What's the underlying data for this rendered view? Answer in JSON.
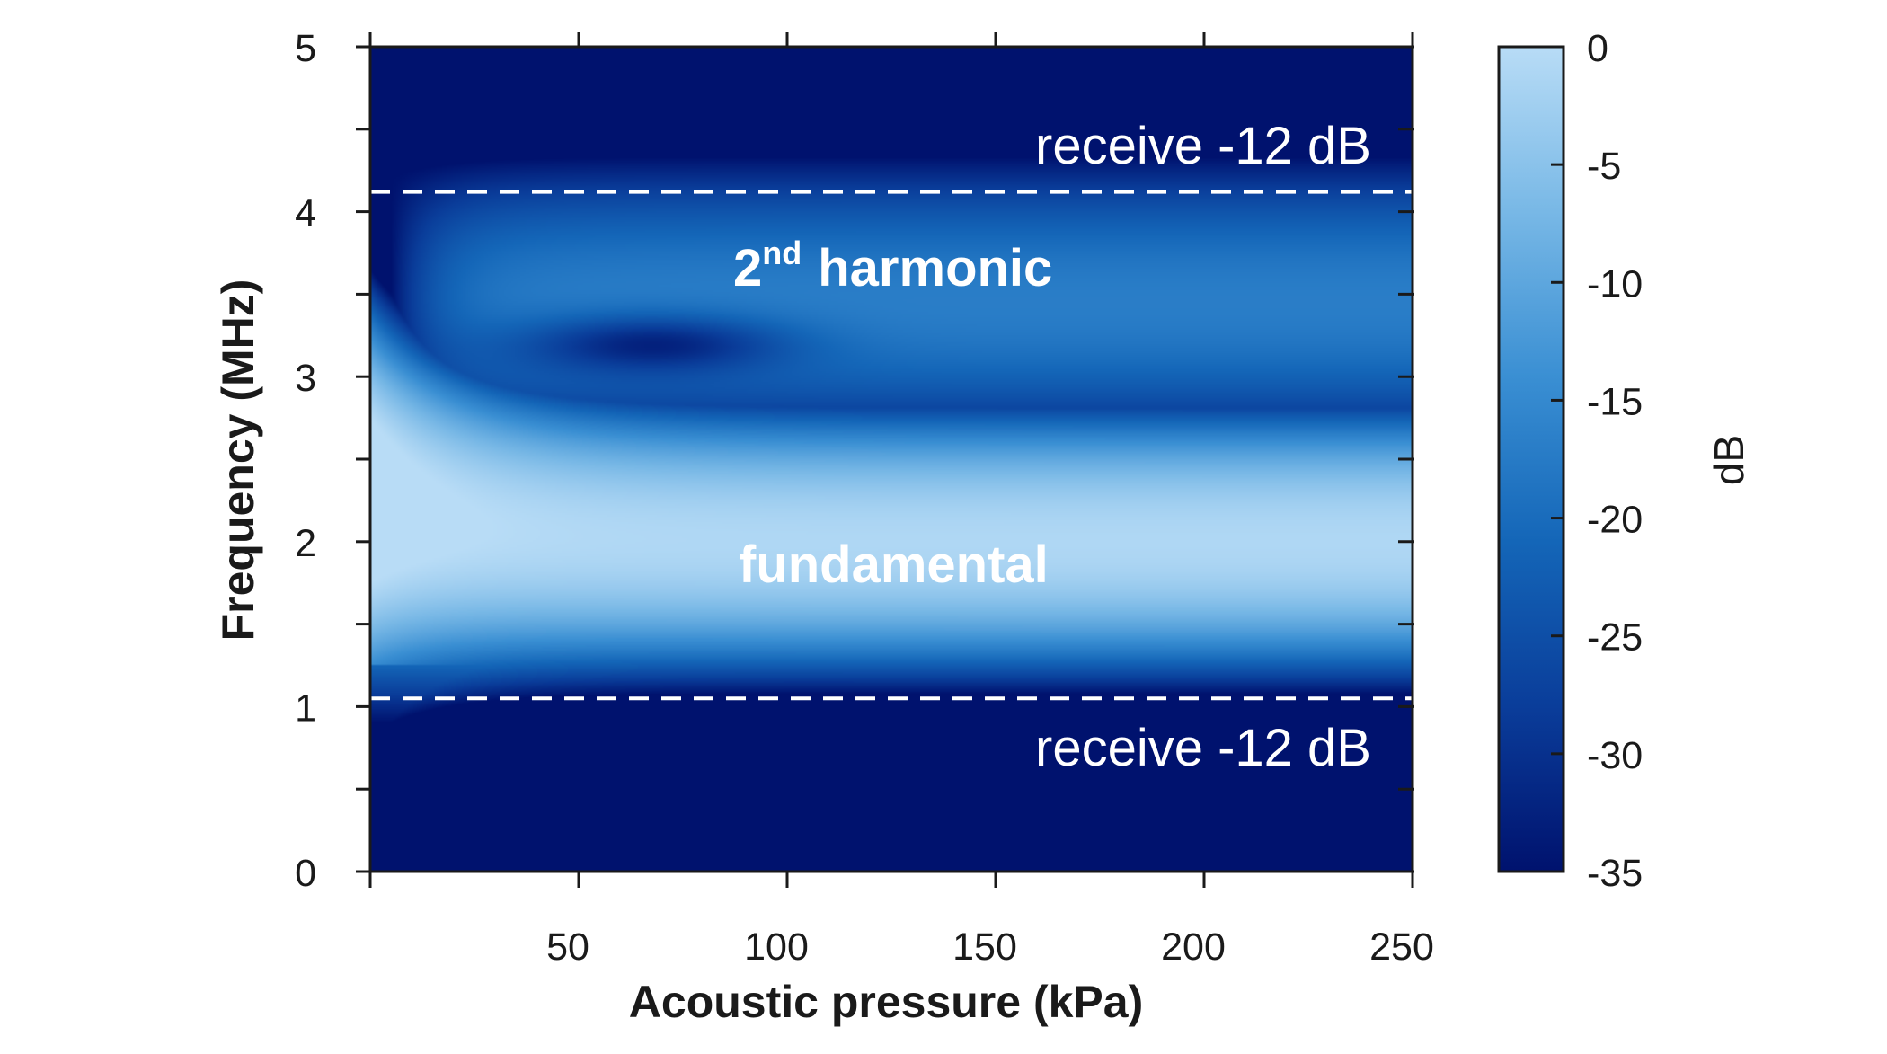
{
  "chart_data": {
    "type": "heatmap",
    "title": "",
    "xlabel": "Acoustic pressure (kPa)",
    "ylabel": "Frequency (MHz)",
    "xlim": [
      0,
      250
    ],
    "ylim": [
      0,
      5
    ],
    "x_ticks": [
      50,
      100,
      150,
      200,
      250
    ],
    "y_ticks": [
      0,
      1,
      2,
      3,
      4,
      5
    ],
    "x_tick_labels": [
      "50",
      "100",
      "150",
      "200",
      "250"
    ],
    "y_tick_labels": [
      "0",
      "1",
      "2",
      "3",
      "4",
      "5"
    ],
    "colorbar": {
      "label": "dB",
      "range": [
        -35,
        0
      ],
      "ticks": [
        0,
        -5,
        -10,
        -15,
        -20,
        -25,
        -30,
        -35
      ],
      "tick_labels": [
        "0",
        "-5",
        "-10",
        "-15",
        "-20",
        "-25",
        "-30",
        "-35"
      ],
      "colormap": [
        "#00126e",
        "#0a3d9a",
        "#1466b8",
        "#3a8fd3",
        "#78b8e6",
        "#b8dcf6"
      ]
    },
    "bands": [
      {
        "label": "fundamental",
        "center_mhz": 2.0,
        "peak_db": -5
      },
      {
        "label": "2nd harmonic",
        "center_mhz": 3.5,
        "peak_db": -20
      }
    ],
    "dip": {
      "x_kpa": 68,
      "y_mhz": 3.2
    },
    "annotations": [
      {
        "text": "receive -12 dB",
        "y_mhz": 4.12,
        "line": "dashed"
      },
      {
        "text": "receive -12 dB",
        "y_mhz": 1.05,
        "line": "dashed"
      }
    ],
    "band_labels": {
      "harmonic_base": "2",
      "harmonic_sup": "nd",
      "harmonic_word": "harmonic",
      "fundamental": "fundamental"
    },
    "grid": false,
    "legend": "none"
  }
}
